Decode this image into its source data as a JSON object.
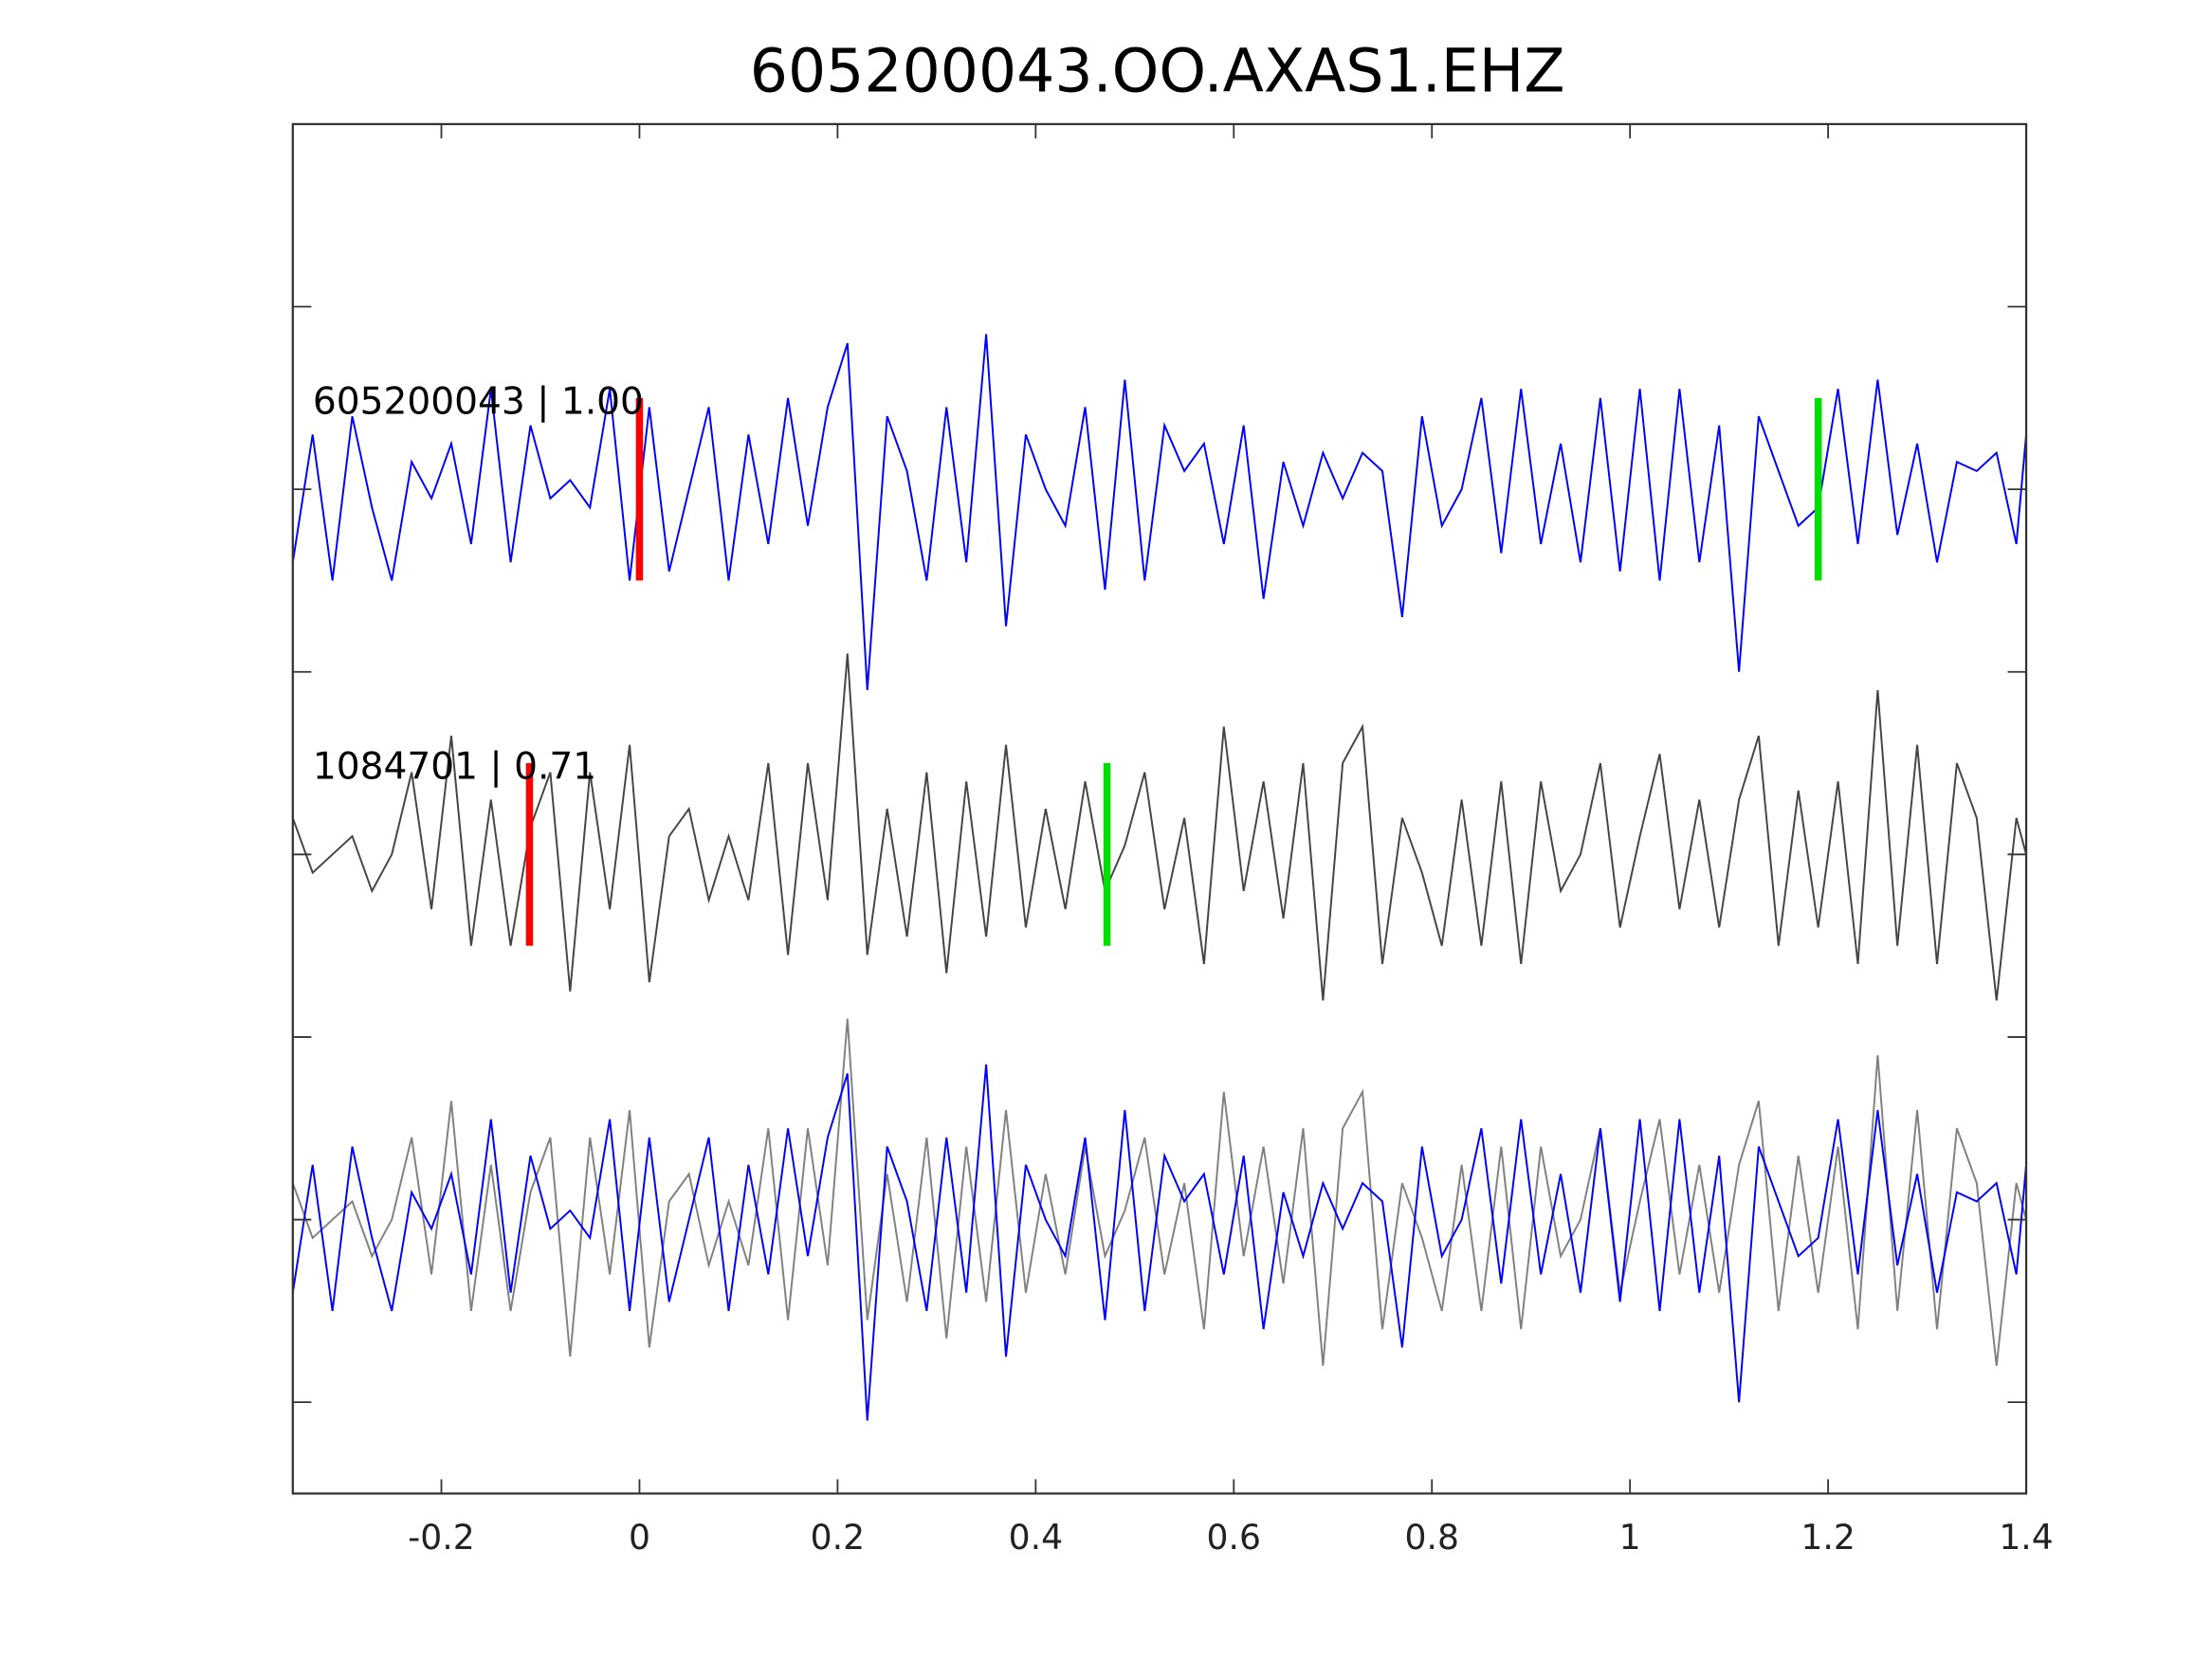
{
  "chart_data": {
    "type": "line",
    "title": "605200043.OO.AXAS1.EHZ",
    "xlabel": "",
    "ylabel": "",
    "xlim": [
      -0.35,
      1.4
    ],
    "ylim": [
      -5.5,
      2.0
    ],
    "xticks": [
      -0.2,
      0,
      0.2,
      0.4,
      0.6,
      0.8,
      1,
      1.2,
      1.4
    ],
    "xtick_labels": [
      "-0.2",
      "0",
      "0.2",
      "0.4",
      "0.6",
      "0.8",
      "1",
      "1.2",
      "1.4"
    ],
    "yticks": [
      1,
      0,
      -1,
      -2,
      -3,
      -4,
      -5
    ],
    "grid": false,
    "colors": {
      "blue": "#0000ff",
      "dark_gray": "#444444",
      "gray": "#808080",
      "red": "#ff0000",
      "green": "#00dd00",
      "axis": "#333333"
    },
    "traces": [
      {
        "name": "605200043",
        "label": "605200043 | 1.00",
        "offset": 0,
        "x_start": -0.35,
        "dt": 0.02,
        "values": [
          -0.4,
          0.3,
          -0.5,
          0.4,
          -0.1,
          -0.5,
          0.15,
          -0.05,
          0.25,
          -0.3,
          0.55,
          -0.4,
          0.35,
          -0.05,
          0.05,
          -0.1,
          0.55,
          -0.5,
          0.45,
          -0.45,
          0.0,
          0.45,
          -0.5,
          0.3,
          -0.3,
          0.5,
          -0.2,
          0.45,
          0.8,
          -1.1,
          0.4,
          0.1,
          -0.5,
          0.45,
          -0.4,
          0.85,
          -0.75,
          0.3,
          0.0,
          -0.2,
          0.45,
          -0.55,
          0.6,
          -0.5,
          0.35,
          0.1,
          0.25,
          -0.3,
          0.35,
          -0.6,
          0.15,
          -0.2,
          0.2,
          -0.05,
          0.2,
          0.1,
          -0.7,
          0.4,
          -0.2,
          0.0,
          0.5,
          -0.35,
          0.55,
          -0.3,
          0.25,
          -0.4,
          0.5,
          -0.45,
          0.55,
          -0.5,
          0.55,
          -0.4,
          0.35,
          -1.0,
          0.4,
          0.1,
          -0.2,
          -0.1,
          0.55,
          -0.3,
          0.6,
          -0.25,
          0.25,
          -0.4,
          0.15,
          0.1,
          0.2,
          -0.3,
          0.3
        ],
        "picks": [
          {
            "type": "P",
            "color": "red",
            "time": 0.0
          },
          {
            "type": "S",
            "color": "green",
            "time": 1.19
          }
        ]
      },
      {
        "name": "1084701",
        "label": "1084701 | 0.71",
        "offset": -2,
        "x_start": -0.35,
        "dt": 0.02,
        "values": [
          0.2,
          -0.1,
          0.0,
          0.1,
          -0.2,
          0.0,
          0.45,
          -0.3,
          0.65,
          -0.5,
          0.3,
          -0.5,
          0.15,
          0.45,
          -0.75,
          0.45,
          -0.3,
          0.6,
          -0.7,
          0.1,
          0.25,
          -0.25,
          0.1,
          -0.25,
          0.5,
          -0.55,
          0.5,
          -0.25,
          1.1,
          -0.55,
          0.25,
          -0.45,
          0.45,
          -0.65,
          0.4,
          -0.45,
          0.6,
          -0.4,
          0.25,
          -0.3,
          0.4,
          -0.2,
          0.05,
          0.45,
          -0.3,
          0.2,
          -0.6,
          0.7,
          -0.2,
          0.4,
          -0.35,
          0.5,
          -0.8,
          0.5,
          0.7,
          -0.6,
          0.2,
          -0.1,
          -0.5,
          0.3,
          -0.5,
          0.4,
          -0.6,
          0.4,
          -0.2,
          0.0,
          0.5,
          -0.4,
          0.1,
          0.55,
          -0.3,
          0.3,
          -0.4,
          0.3,
          0.65,
          -0.5,
          0.35,
          -0.4,
          0.4,
          -0.6,
          0.9,
          -0.5,
          0.6,
          -0.6,
          0.5,
          0.2,
          -0.8,
          0.2,
          0.0
        ],
        "picks": [
          {
            "type": "P",
            "color": "red",
            "time": -0.111
          },
          {
            "type": "S",
            "color": "green",
            "time": 0.472
          }
        ]
      }
    ],
    "overlay": {
      "offset": -4,
      "traces": [
        "1084701",
        "605200043"
      ]
    }
  }
}
